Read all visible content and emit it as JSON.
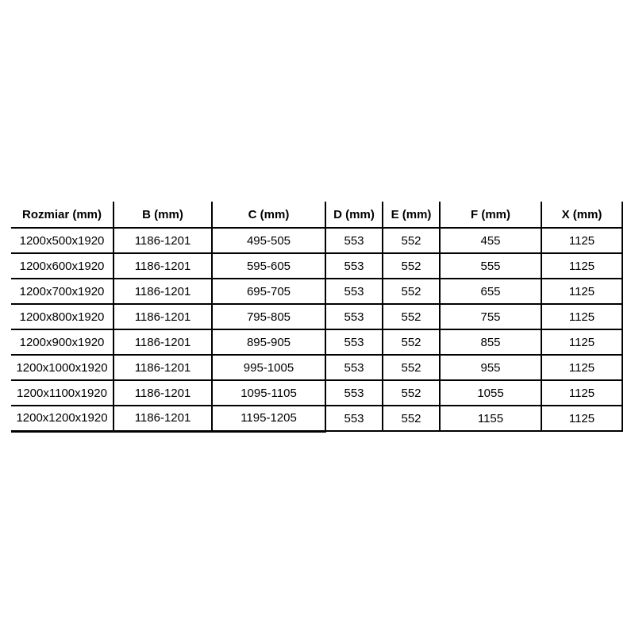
{
  "page": {
    "background_color": "#ffffff",
    "text_color": "#000000",
    "table_border_color": "#000000"
  },
  "table": {
    "columns": [
      "Rozmiar (mm)",
      "B (mm)",
      "C (mm)",
      "D (mm)",
      "E (mm)",
      "F (mm)",
      "X (mm)"
    ],
    "rows": [
      [
        "1200x500x1920",
        "1186-1201",
        "495-505",
        "553",
        "552",
        "455",
        "1125"
      ],
      [
        "1200x600x1920",
        "1186-1201",
        "595-605",
        "553",
        "552",
        "555",
        "1125"
      ],
      [
        "1200x700x1920",
        "1186-1201",
        "695-705",
        "553",
        "552",
        "655",
        "1125"
      ],
      [
        "1200x800x1920",
        "1186-1201",
        "795-805",
        "553",
        "552",
        "755",
        "1125"
      ],
      [
        "1200x900x1920",
        "1186-1201",
        "895-905",
        "553",
        "552",
        "855",
        "1125"
      ],
      [
        "1200x1000x1920",
        "1186-1201",
        "995-1005",
        "553",
        "552",
        "955",
        "1125"
      ],
      [
        "1200x1100x1920",
        "1186-1201",
        "1095-1105",
        "553",
        "552",
        "1055",
        "1125"
      ],
      [
        "1200x1200x1920",
        "1186-1201",
        "1195-1205",
        "553",
        "552",
        "1155",
        "1125"
      ]
    ]
  }
}
